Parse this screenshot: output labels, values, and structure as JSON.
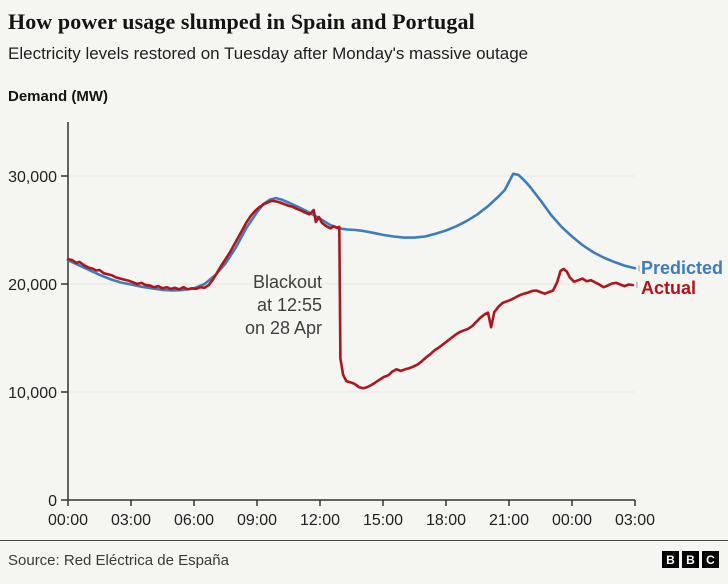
{
  "header": {
    "title": "How power usage slumped in Spain and Portugal",
    "subtitle": "Electricity levels restored on Tuesday after Monday's massive outage"
  },
  "chart_data": {
    "type": "line",
    "title": "How power usage slumped in Spain and Portugal",
    "xlabel": "",
    "ylabel": "Demand (MW)",
    "x_unit": "hours since 00:00 on 28 Apr",
    "xlim": [
      0,
      27
    ],
    "ylim": [
      0,
      35000
    ],
    "grid": "horizontal",
    "legend_position": "right-of-line-ends",
    "axis_color": "#333333",
    "grid_color": "#e6e6e2",
    "xticks": [
      {
        "v": 0,
        "label": "00:00"
      },
      {
        "v": 3,
        "label": "03:00"
      },
      {
        "v": 6,
        "label": "06:00"
      },
      {
        "v": 9,
        "label": "09:00"
      },
      {
        "v": 12,
        "label": "12:00"
      },
      {
        "v": 15,
        "label": "15:00"
      },
      {
        "v": 18,
        "label": "18:00"
      },
      {
        "v": 21,
        "label": "21:00"
      },
      {
        "v": 24,
        "label": "00:00"
      },
      {
        "v": 27,
        "label": "03:00"
      }
    ],
    "yticks": [
      {
        "v": 0,
        "label": "0"
      },
      {
        "v": 10000,
        "label": "10,000"
      },
      {
        "v": 20000,
        "label": "20,000"
      },
      {
        "v": 30000,
        "label": "30,000"
      }
    ],
    "annotation": {
      "lines": [
        "Blackout",
        "at 12:55",
        "on 28 Apr"
      ],
      "event_time_hours": 12.92
    },
    "series": [
      {
        "name": "Predicted",
        "color": "#3e7dbd",
        "points": [
          [
            0,
            22200
          ],
          [
            0.5,
            21750
          ],
          [
            1,
            21300
          ],
          [
            1.5,
            20850
          ],
          [
            2,
            20450
          ],
          [
            2.5,
            20150
          ],
          [
            3,
            19950
          ],
          [
            3.5,
            19750
          ],
          [
            4,
            19600
          ],
          [
            4.5,
            19450
          ],
          [
            5,
            19400
          ],
          [
            5.5,
            19450
          ],
          [
            6,
            19600
          ],
          [
            6.5,
            20000
          ],
          [
            7,
            20800
          ],
          [
            7.5,
            21900
          ],
          [
            8,
            23400
          ],
          [
            8.5,
            25200
          ],
          [
            9,
            26650
          ],
          [
            9.3,
            27400
          ],
          [
            9.6,
            27800
          ],
          [
            9.9,
            27950
          ],
          [
            10.2,
            27800
          ],
          [
            10.5,
            27550
          ],
          [
            11,
            27100
          ],
          [
            11.5,
            26600
          ],
          [
            12,
            26050
          ],
          [
            12.5,
            25450
          ],
          [
            12.9,
            25150
          ],
          [
            13.3,
            25050
          ],
          [
            13.7,
            25000
          ],
          [
            14.1,
            24900
          ],
          [
            14.5,
            24750
          ],
          [
            15,
            24550
          ],
          [
            15.5,
            24400
          ],
          [
            16,
            24300
          ],
          [
            16.5,
            24300
          ],
          [
            17,
            24400
          ],
          [
            17.5,
            24650
          ],
          [
            18,
            24950
          ],
          [
            18.5,
            25350
          ],
          [
            19,
            25850
          ],
          [
            19.5,
            26450
          ],
          [
            20,
            27200
          ],
          [
            20.5,
            28100
          ],
          [
            20.8,
            28700
          ],
          [
            21,
            29450
          ],
          [
            21.2,
            30200
          ],
          [
            21.45,
            30100
          ],
          [
            21.7,
            29650
          ],
          [
            22,
            29000
          ],
          [
            22.5,
            27750
          ],
          [
            23,
            26400
          ],
          [
            23.5,
            25300
          ],
          [
            24,
            24400
          ],
          [
            24.5,
            23600
          ],
          [
            25,
            22950
          ],
          [
            25.5,
            22450
          ],
          [
            26,
            22050
          ],
          [
            26.5,
            21700
          ],
          [
            27,
            21450
          ]
        ]
      },
      {
        "name": "Actual",
        "color": "#b0151c",
        "points": [
          [
            0,
            22300
          ],
          [
            0.2,
            22200
          ],
          [
            0.4,
            21950
          ],
          [
            0.55,
            22050
          ],
          [
            0.75,
            21750
          ],
          [
            1,
            21500
          ],
          [
            1.2,
            21400
          ],
          [
            1.35,
            21250
          ],
          [
            1.5,
            21300
          ],
          [
            1.7,
            21000
          ],
          [
            1.9,
            20900
          ],
          [
            2.1,
            20800
          ],
          [
            2.3,
            20600
          ],
          [
            2.5,
            20500
          ],
          [
            2.7,
            20400
          ],
          [
            2.9,
            20300
          ],
          [
            3.1,
            20150
          ],
          [
            3.3,
            20000
          ],
          [
            3.5,
            20100
          ],
          [
            3.7,
            19900
          ],
          [
            3.9,
            19850
          ],
          [
            4.1,
            19700
          ],
          [
            4.3,
            19800
          ],
          [
            4.5,
            19600
          ],
          [
            4.7,
            19700
          ],
          [
            4.9,
            19550
          ],
          [
            5.1,
            19650
          ],
          [
            5.3,
            19500
          ],
          [
            5.5,
            19700
          ],
          [
            5.7,
            19500
          ],
          [
            5.9,
            19600
          ],
          [
            6.1,
            19550
          ],
          [
            6.3,
            19700
          ],
          [
            6.5,
            19650
          ],
          [
            6.7,
            19900
          ],
          [
            6.9,
            20400
          ],
          [
            7.1,
            21050
          ],
          [
            7.3,
            21700
          ],
          [
            7.5,
            22300
          ],
          [
            7.7,
            22900
          ],
          [
            7.9,
            23600
          ],
          [
            8.1,
            24300
          ],
          [
            8.3,
            25000
          ],
          [
            8.5,
            25700
          ],
          [
            8.7,
            26300
          ],
          [
            8.9,
            26750
          ],
          [
            9.1,
            27100
          ],
          [
            9.3,
            27350
          ],
          [
            9.5,
            27550
          ],
          [
            9.7,
            27700
          ],
          [
            9.9,
            27650
          ],
          [
            10.1,
            27550
          ],
          [
            10.3,
            27400
          ],
          [
            10.5,
            27250
          ],
          [
            10.7,
            27150
          ],
          [
            10.9,
            26950
          ],
          [
            11.1,
            26800
          ],
          [
            11.3,
            26600
          ],
          [
            11.5,
            26450
          ],
          [
            11.7,
            26850
          ],
          [
            11.8,
            25750
          ],
          [
            11.95,
            26200
          ],
          [
            12.1,
            25650
          ],
          [
            12.3,
            25350
          ],
          [
            12.5,
            25150
          ],
          [
            12.65,
            25350
          ],
          [
            12.8,
            25200
          ],
          [
            12.92,
            25300
          ],
          [
            12.97,
            13100
          ],
          [
            13.1,
            11600
          ],
          [
            13.25,
            11000
          ],
          [
            13.45,
            10900
          ],
          [
            13.65,
            10750
          ],
          [
            13.85,
            10450
          ],
          [
            14.05,
            10350
          ],
          [
            14.25,
            10450
          ],
          [
            14.45,
            10650
          ],
          [
            14.65,
            10900
          ],
          [
            14.85,
            11150
          ],
          [
            15.05,
            11400
          ],
          [
            15.25,
            11550
          ],
          [
            15.45,
            11900
          ],
          [
            15.65,
            12100
          ],
          [
            15.85,
            11950
          ],
          [
            16.05,
            12100
          ],
          [
            16.25,
            12200
          ],
          [
            16.45,
            12350
          ],
          [
            16.65,
            12550
          ],
          [
            16.85,
            12850
          ],
          [
            17.05,
            13200
          ],
          [
            17.25,
            13500
          ],
          [
            17.45,
            13850
          ],
          [
            17.65,
            14100
          ],
          [
            17.85,
            14400
          ],
          [
            18.05,
            14700
          ],
          [
            18.25,
            15000
          ],
          [
            18.45,
            15300
          ],
          [
            18.65,
            15550
          ],
          [
            18.85,
            15700
          ],
          [
            19.05,
            15850
          ],
          [
            19.25,
            16100
          ],
          [
            19.45,
            16500
          ],
          [
            19.65,
            16900
          ],
          [
            19.85,
            17200
          ],
          [
            20,
            17350
          ],
          [
            20.15,
            16000
          ],
          [
            20.3,
            17400
          ],
          [
            20.5,
            17900
          ],
          [
            20.7,
            18250
          ],
          [
            20.9,
            18400
          ],
          [
            21.1,
            18550
          ],
          [
            21.3,
            18750
          ],
          [
            21.5,
            18950
          ],
          [
            21.7,
            19100
          ],
          [
            21.9,
            19200
          ],
          [
            22.1,
            19350
          ],
          [
            22.3,
            19400
          ],
          [
            22.5,
            19250
          ],
          [
            22.7,
            19100
          ],
          [
            22.9,
            19250
          ],
          [
            23.1,
            19400
          ],
          [
            23.3,
            20200
          ],
          [
            23.45,
            21200
          ],
          [
            23.6,
            21400
          ],
          [
            23.75,
            21150
          ],
          [
            23.9,
            20600
          ],
          [
            24.1,
            20200
          ],
          [
            24.3,
            20350
          ],
          [
            24.5,
            20500
          ],
          [
            24.7,
            20250
          ],
          [
            24.9,
            20350
          ],
          [
            25.1,
            20150
          ],
          [
            25.3,
            19950
          ],
          [
            25.5,
            19700
          ],
          [
            25.7,
            19850
          ],
          [
            25.9,
            20050
          ],
          [
            26.1,
            20100
          ],
          [
            26.3,
            19950
          ],
          [
            26.5,
            19800
          ],
          [
            26.7,
            19950
          ],
          [
            26.9,
            19900
          ]
        ]
      }
    ]
  },
  "footer": {
    "source": "Source: Red Eléctrica de España",
    "logo_letters": [
      "B",
      "B",
      "C"
    ]
  }
}
